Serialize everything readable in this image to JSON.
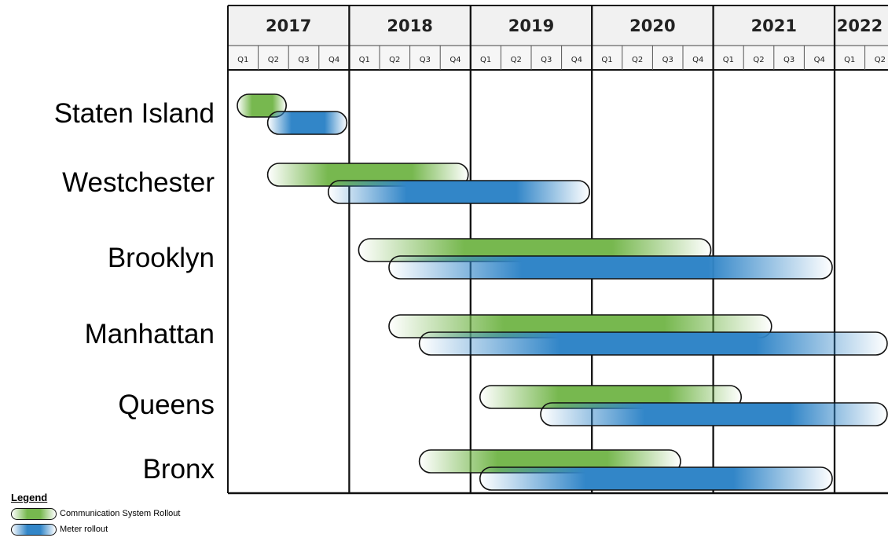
{
  "chart_data": {
    "type": "gantt",
    "years": [
      "2017",
      "2018",
      "2019",
      "2020",
      "2021",
      "2022"
    ],
    "quarters": [
      "Q1",
      "Q2",
      "Q3",
      "Q4"
    ],
    "x_start": "2017-Q1",
    "x_end": "2022-Q2",
    "rows": [
      {
        "label": "Staten Island",
        "bars": [
          {
            "series": "Communication System Rollout",
            "start": "2017-Q1",
            "end": "2017-Q2"
          },
          {
            "series": "Meter rollout",
            "start": "2017-Q2",
            "end": "2017-Q4"
          }
        ]
      },
      {
        "label": "Westchester",
        "bars": [
          {
            "series": "Communication System Rollout",
            "start": "2017-Q2",
            "end": "2018-Q4"
          },
          {
            "series": "Meter rollout",
            "start": "2017-Q4",
            "end": "2019-Q4"
          }
        ]
      },
      {
        "label": "Brooklyn",
        "bars": [
          {
            "series": "Communication System Rollout",
            "start": "2018-Q1",
            "end": "2020-Q4"
          },
          {
            "series": "Meter rollout",
            "start": "2018-Q2",
            "end": "2021-Q4"
          }
        ]
      },
      {
        "label": "Manhattan",
        "bars": [
          {
            "series": "Communication System Rollout",
            "start": "2018-Q2",
            "end": "2021-Q2"
          },
          {
            "series": "Meter rollout",
            "start": "2018-Q3",
            "end": "2022-Q2"
          }
        ]
      },
      {
        "label": "Queens",
        "bars": [
          {
            "series": "Communication System Rollout",
            "start": "2019-Q1",
            "end": "2021-Q1"
          },
          {
            "series": "Meter rollout",
            "start": "2019-Q3",
            "end": "2022-Q2"
          }
        ]
      },
      {
        "label": "Bronx",
        "bars": [
          {
            "series": "Communication System Rollout",
            "start": "2018-Q3",
            "end": "2020-Q3"
          },
          {
            "series": "Meter rollout",
            "start": "2019-Q1",
            "end": "2021-Q4"
          }
        ]
      }
    ],
    "legend": {
      "title": "Legend",
      "placement": "bottom-left",
      "items": [
        {
          "name": "Communication System Rollout",
          "color": "#77b84f"
        },
        {
          "name": "Meter rollout",
          "color": "#3286c8"
        }
      ]
    },
    "grid": "year lines only"
  }
}
